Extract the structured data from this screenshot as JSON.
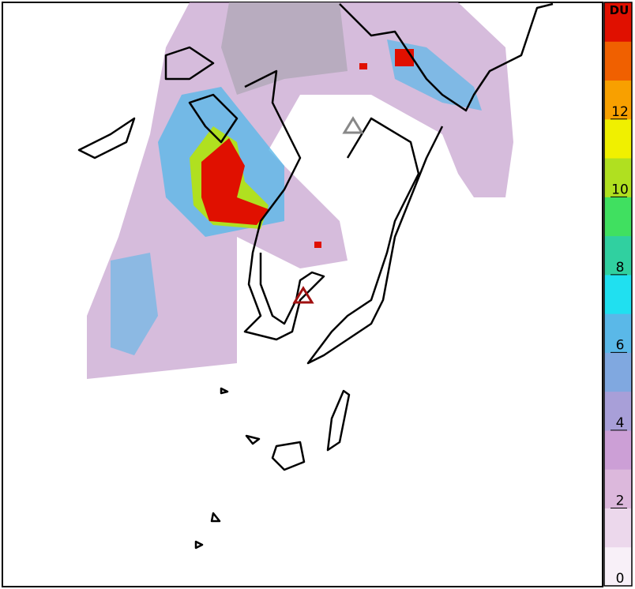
{
  "colorbar": {
    "label": "DU",
    "range": [
      0,
      15
    ],
    "ticks": [
      0,
      2,
      4,
      6,
      8,
      10,
      12
    ],
    "colors": [
      "#f8f0f8",
      "#ecd8ec",
      "#dcb8dc",
      "#cc9fd6",
      "#a89fd8",
      "#80a8e0",
      "#5ab8e8",
      "#20e0f0",
      "#30d0a0",
      "#40e060",
      "#b0e020",
      "#f0f000",
      "#f8a000",
      "#f06000",
      "#e01000"
    ]
  }
}
